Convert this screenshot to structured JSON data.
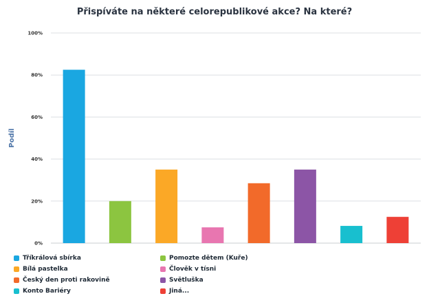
{
  "chart_data": {
    "type": "bar",
    "title": "Přispíváte na některé celorepublikové akce? Na které?",
    "ylabel": "Podíl",
    "ylim": [
      0,
      100
    ],
    "yticks": [
      "0%",
      "20%",
      "40%",
      "60%",
      "80%",
      "100%"
    ],
    "grid": true,
    "legend_position": "bottom",
    "categories": [
      "Tříkrálová sbírka",
      "Pomozte dětem (Kuře)",
      "Bílá pastelka",
      "Člověk v tísni",
      "Český den proti rakovině",
      "Světluška",
      "Konto Bariéry",
      "Jiná..."
    ],
    "values": [
      82.5,
      20,
      35,
      7.5,
      28.5,
      35,
      8.2,
      12.5
    ],
    "colors": [
      "#1aa7e1",
      "#8cc540",
      "#fba826",
      "#e876b0",
      "#f26a2a",
      "#8c55a6",
      "#18bfcf",
      "#ee4036"
    ]
  }
}
